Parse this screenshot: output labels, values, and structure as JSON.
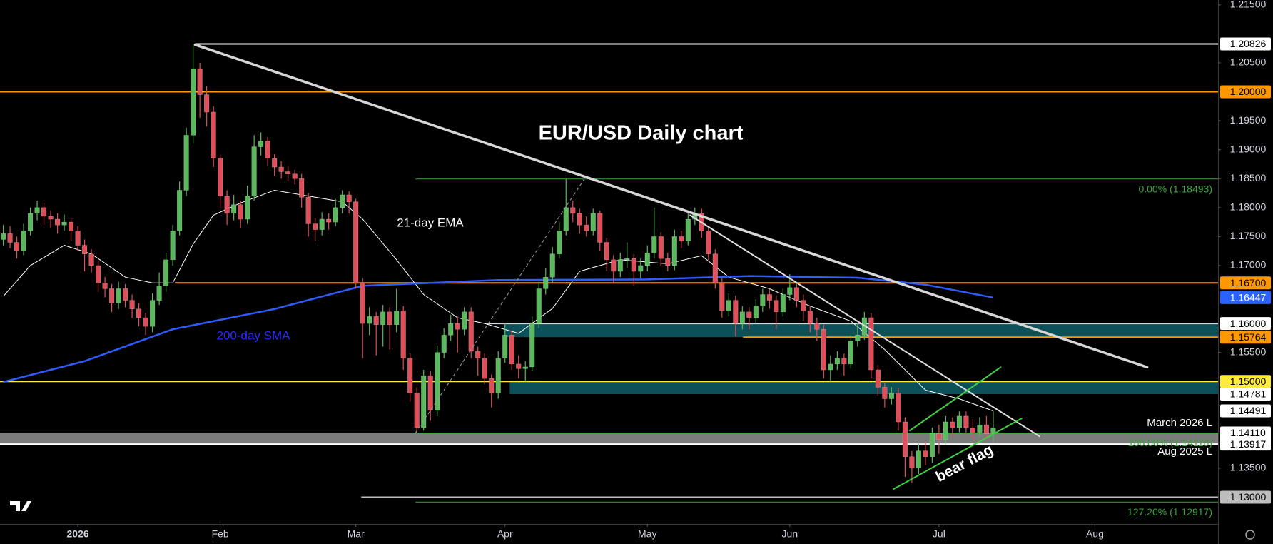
{
  "chart_data": {
    "type": "candlestick",
    "title": "EUR/USD Daily chart",
    "xlim": [
      -0.48,
      179.16
    ],
    "xticks": [
      {
        "value": 11,
        "label": "2026"
      },
      {
        "value": 32,
        "label": "Feb"
      },
      {
        "value": 52,
        "label": "Mar"
      },
      {
        "value": 74,
        "label": "Apr"
      },
      {
        "value": 95,
        "label": "May"
      },
      {
        "value": 116,
        "label": "Jun"
      },
      {
        "value": 138,
        "label": "Jul"
      },
      {
        "value": 161,
        "label": "Aug"
      }
    ],
    "ylim": [
      1.12538,
      1.21584
    ],
    "yticks": [
      {
        "value": 1.215,
        "label": "1.21500"
      },
      {
        "value": 1.205,
        "label": "1.20500"
      },
      {
        "value": 1.195,
        "label": "1.19500"
      },
      {
        "value": 1.19,
        "label": "1.19000"
      },
      {
        "value": 1.185,
        "label": "1.18500"
      },
      {
        "value": 1.18,
        "label": "1.18000"
      },
      {
        "value": 1.175,
        "label": "1.17500"
      },
      {
        "value": 1.17,
        "label": "1.17000"
      },
      {
        "value": 1.155,
        "label": "1.15500"
      },
      {
        "value": 1.135,
        "label": "1.13500"
      }
    ],
    "grid": false,
    "up_color": "#5cb85c",
    "down_color": "#e04e5a",
    "candles": [
      [
        1.1745,
        1.177,
        1.1735,
        1.1755
      ],
      [
        1.1755,
        1.1768,
        1.173,
        1.174
      ],
      [
        1.174,
        1.175,
        1.1712,
        1.1725
      ],
      [
        1.1725,
        1.1772,
        1.1718,
        1.176
      ],
      [
        1.176,
        1.18,
        1.1752,
        1.179
      ],
      [
        1.179,
        1.1812,
        1.1778,
        1.18
      ],
      [
        1.18,
        1.1808,
        1.177,
        1.1785
      ],
      [
        1.1785,
        1.1795,
        1.1765,
        1.178
      ],
      [
        1.178,
        1.179,
        1.1755,
        1.177
      ],
      [
        1.177,
        1.1788,
        1.176,
        1.1775
      ],
      [
        1.1775,
        1.1782,
        1.1742,
        1.176
      ],
      [
        1.176,
        1.1768,
        1.1725,
        1.1735
      ],
      [
        1.1735,
        1.1745,
        1.169,
        1.172
      ],
      [
        1.172,
        1.1728,
        1.1688,
        1.17
      ],
      [
        1.17,
        1.1708,
        1.1655,
        1.167
      ],
      [
        1.167,
        1.168,
        1.1645,
        1.166
      ],
      [
        1.166,
        1.1668,
        1.162,
        1.1635
      ],
      [
        1.1635,
        1.1672,
        1.1625,
        1.166
      ],
      [
        1.166,
        1.1668,
        1.1628,
        1.164
      ],
      [
        1.164,
        1.165,
        1.161,
        1.1625
      ],
      [
        1.1625,
        1.1635,
        1.1595,
        1.161
      ],
      [
        1.161,
        1.1618,
        1.158,
        1.1595
      ],
      [
        1.1595,
        1.1652,
        1.1585,
        1.164
      ],
      [
        1.164,
        1.1688,
        1.1632,
        1.1665
      ],
      [
        1.1665,
        1.1722,
        1.1655,
        1.171
      ],
      [
        1.171,
        1.177,
        1.17,
        1.176
      ],
      [
        1.176,
        1.1845,
        1.1752,
        1.183
      ],
      [
        1.183,
        1.1938,
        1.182,
        1.1925
      ],
      [
        1.1925,
        1.20826,
        1.191,
        1.204
      ],
      [
        1.204,
        1.205,
        1.1955,
        1.1995
      ],
      [
        1.1995,
        1.201,
        1.194,
        1.1965
      ],
      [
        1.1965,
        1.1975,
        1.187,
        1.1885
      ],
      [
        1.1885,
        1.1892,
        1.18,
        1.182
      ],
      [
        1.182,
        1.183,
        1.177,
        1.179
      ],
      [
        1.179,
        1.1822,
        1.1778,
        1.1805
      ],
      [
        1.1805,
        1.1812,
        1.1765,
        1.178
      ],
      [
        1.178,
        1.1838,
        1.1772,
        1.182
      ],
      [
        1.182,
        1.1925,
        1.1812,
        1.1905
      ],
      [
        1.1905,
        1.193,
        1.189,
        1.1915
      ],
      [
        1.1915,
        1.1922,
        1.1872,
        1.1885
      ],
      [
        1.1885,
        1.1892,
        1.1855,
        1.187
      ],
      [
        1.187,
        1.188,
        1.185,
        1.1862
      ],
      [
        1.1862,
        1.1872,
        1.1845,
        1.1858
      ],
      [
        1.1858,
        1.1865,
        1.184,
        1.185
      ],
      [
        1.185,
        1.1858,
        1.18,
        1.1818
      ],
      [
        1.1818,
        1.1825,
        1.175,
        1.1772
      ],
      [
        1.1772,
        1.1782,
        1.1742,
        1.1762
      ],
      [
        1.1762,
        1.1792,
        1.1752,
        1.178
      ],
      [
        1.178,
        1.179,
        1.1762,
        1.1775
      ],
      [
        1.1775,
        1.1815,
        1.1768,
        1.18
      ],
      [
        1.18,
        1.183,
        1.179,
        1.1822
      ],
      [
        1.1822,
        1.1828,
        1.179,
        1.181
      ],
      [
        1.181,
        1.1815,
        1.166,
        1.167
      ],
      [
        1.167,
        1.1678,
        1.154,
        1.16
      ],
      [
        1.16,
        1.1628,
        1.158,
        1.1612
      ],
      [
        1.1612,
        1.162,
        1.1545,
        1.1598
      ],
      [
        1.1598,
        1.1632,
        1.156,
        1.162
      ],
      [
        1.162,
        1.1628,
        1.1555,
        1.1598
      ],
      [
        1.1598,
        1.166,
        1.1585,
        1.1622
      ],
      [
        1.1622,
        1.163,
        1.152,
        1.154
      ],
      [
        1.154,
        1.1548,
        1.1465,
        1.148
      ],
      [
        1.148,
        1.149,
        1.1411,
        1.142
      ],
      [
        1.142,
        1.152,
        1.1415,
        1.151
      ],
      [
        1.151,
        1.1518,
        1.1432,
        1.145
      ],
      [
        1.145,
        1.1562,
        1.144,
        1.155
      ],
      [
        1.155,
        1.1592,
        1.154,
        1.158
      ],
      [
        1.158,
        1.1615,
        1.157,
        1.16
      ],
      [
        1.16,
        1.1612,
        1.155,
        1.159
      ],
      [
        1.159,
        1.1628,
        1.158,
        1.162
      ],
      [
        1.162,
        1.1628,
        1.154,
        1.1552
      ],
      [
        1.1552,
        1.156,
        1.151,
        1.154
      ],
      [
        1.154,
        1.1548,
        1.1495,
        1.1505
      ],
      [
        1.1505,
        1.1512,
        1.1455,
        1.148
      ],
      [
        1.148,
        1.1552,
        1.147,
        1.154
      ],
      [
        1.154,
        1.16,
        1.1532,
        1.158
      ],
      [
        1.158,
        1.1588,
        1.152,
        1.153
      ],
      [
        1.153,
        1.1545,
        1.1505,
        1.1522
      ],
      [
        1.1522,
        1.1535,
        1.15,
        1.1525
      ],
      [
        1.1525,
        1.1612,
        1.1518,
        1.16
      ],
      [
        1.16,
        1.1672,
        1.1592,
        1.166
      ],
      [
        1.166,
        1.1695,
        1.165,
        1.168
      ],
      [
        1.168,
        1.1732,
        1.167,
        1.172
      ],
      [
        1.172,
        1.1775,
        1.1712,
        1.176
      ],
      [
        1.176,
        1.1849,
        1.1752,
        1.18
      ],
      [
        1.18,
        1.1812,
        1.1775,
        1.179
      ],
      [
        1.179,
        1.1798,
        1.1755,
        1.177
      ],
      [
        1.177,
        1.1785,
        1.175,
        1.176
      ],
      [
        1.176,
        1.1798,
        1.1752,
        1.179
      ],
      [
        1.179,
        1.1795,
        1.1725,
        1.174
      ],
      [
        1.174,
        1.1748,
        1.169,
        1.171
      ],
      [
        1.171,
        1.1718,
        1.167,
        1.169
      ],
      [
        1.169,
        1.1722,
        1.168,
        1.171
      ],
      [
        1.171,
        1.174,
        1.1695,
        1.1712
      ],
      [
        1.1712,
        1.172,
        1.1665,
        1.169
      ],
      [
        1.169,
        1.1712,
        1.1678,
        1.17
      ],
      [
        1.17,
        1.1735,
        1.169,
        1.1722
      ],
      [
        1.1722,
        1.18,
        1.1712,
        1.175
      ],
      [
        1.175,
        1.1758,
        1.17,
        1.1712
      ],
      [
        1.1712,
        1.1722,
        1.169,
        1.17
      ],
      [
        1.17,
        1.1762,
        1.1692,
        1.175
      ],
      [
        1.175,
        1.176,
        1.173,
        1.1742
      ],
      [
        1.1742,
        1.1795,
        1.1735,
        1.178
      ],
      [
        1.178,
        1.18,
        1.177,
        1.179
      ],
      [
        1.179,
        1.1798,
        1.1748,
        1.176
      ],
      [
        1.176,
        1.1768,
        1.171,
        1.172
      ],
      [
        1.172,
        1.1728,
        1.166,
        1.167
      ],
      [
        1.167,
        1.1678,
        1.161,
        1.1622
      ],
      [
        1.1622,
        1.1652,
        1.1612,
        1.164
      ],
      [
        1.164,
        1.1648,
        1.1578,
        1.16
      ],
      [
        1.16,
        1.163,
        1.159,
        1.162
      ],
      [
        1.162,
        1.1628,
        1.159,
        1.161
      ],
      [
        1.161,
        1.1642,
        1.16,
        1.163
      ],
      [
        1.163,
        1.166,
        1.162,
        1.165
      ],
      [
        1.165,
        1.166,
        1.1625,
        1.164
      ],
      [
        1.164,
        1.1648,
        1.159,
        1.162
      ],
      [
        1.162,
        1.166,
        1.1612,
        1.165
      ],
      [
        1.165,
        1.1685,
        1.164,
        1.1662
      ],
      [
        1.1662,
        1.167,
        1.1628,
        1.164
      ],
      [
        1.164,
        1.165,
        1.1605,
        1.1622
      ],
      [
        1.1622,
        1.163,
        1.1585,
        1.16
      ],
      [
        1.16,
        1.161,
        1.157,
        1.159
      ],
      [
        1.159,
        1.1598,
        1.1505,
        1.152
      ],
      [
        1.152,
        1.1545,
        1.15,
        1.153
      ],
      [
        1.153,
        1.1552,
        1.152,
        1.154
      ],
      [
        1.154,
        1.1548,
        1.151,
        1.153
      ],
      [
        1.153,
        1.158,
        1.1522,
        1.157
      ],
      [
        1.157,
        1.16,
        1.156,
        1.158
      ],
      [
        1.158,
        1.162,
        1.1572,
        1.161
      ],
      [
        1.161,
        1.1618,
        1.1505,
        1.152
      ],
      [
        1.152,
        1.1528,
        1.1475,
        1.149
      ],
      [
        1.149,
        1.1498,
        1.1455,
        1.147
      ],
      [
        1.147,
        1.149,
        1.146,
        1.148
      ],
      [
        1.148,
        1.1488,
        1.1415,
        1.143
      ],
      [
        1.143,
        1.1438,
        1.1335,
        1.137
      ],
      [
        1.137,
        1.138,
        1.1325,
        1.135
      ],
      [
        1.135,
        1.1392,
        1.134,
        1.138
      ],
      [
        1.138,
        1.1395,
        1.1355,
        1.137
      ],
      [
        1.137,
        1.142,
        1.136,
        1.141
      ],
      [
        1.141,
        1.1425,
        1.1375,
        1.14
      ],
      [
        1.14,
        1.144,
        1.1392,
        1.143
      ],
      [
        1.143,
        1.1438,
        1.1405,
        1.142
      ],
      [
        1.142,
        1.1448,
        1.1412,
        1.144
      ],
      [
        1.144,
        1.1448,
        1.1408,
        1.142
      ],
      [
        1.142,
        1.1435,
        1.14,
        1.1412
      ],
      [
        1.1412,
        1.1438,
        1.1405,
        1.1425
      ],
      [
        1.1425,
        1.144,
        1.1402,
        1.141
      ],
      [
        1.141,
        1.1449,
        1.1395,
        1.142
      ]
    ],
    "series": [
      {
        "name": "21-day EMA",
        "color": "#ffffff",
        "width": 1,
        "x": [
          0,
          4,
          9,
          13,
          18,
          22,
          25,
          28,
          31,
          35,
          40,
          45,
          50,
          53,
          58,
          62,
          67,
          71,
          76,
          81,
          85,
          91,
          98,
          103,
          107,
          113,
          119,
          125,
          130,
          136,
          141,
          146
        ],
        "values": [
          1.1647,
          1.17,
          1.1735,
          1.172,
          1.168,
          1.167,
          1.167,
          1.1737,
          1.1787,
          1.1808,
          1.183,
          1.182,
          1.181,
          1.178,
          1.171,
          1.165,
          1.161,
          1.16,
          1.1583,
          1.1626,
          1.169,
          1.171,
          1.1703,
          1.1717,
          1.168,
          1.166,
          1.163,
          1.1604,
          1.1555,
          1.1485,
          1.147,
          1.1449
        ]
      },
      {
        "name": "200-day SMA",
        "color": "#2f5cff",
        "width": 2.5,
        "x": [
          0,
          12,
          25,
          40,
          53,
          73,
          95,
          110,
          126,
          136,
          146
        ],
        "values": [
          1.1499,
          1.1535,
          1.159,
          1.1625,
          1.1665,
          1.1675,
          1.1676,
          1.1682,
          1.1679,
          1.1667,
          1.16447
        ]
      }
    ],
    "levels": [
      {
        "value": 1.20826,
        "label": "1.20826",
        "from": 28.3,
        "color": "#ffffff",
        "label_bg": "#ffffff",
        "label_color": "#000000"
      },
      {
        "value": 1.2,
        "label": "1.20000",
        "from": -0.48,
        "color": "#ff9800",
        "label_bg": "#ff9800",
        "label_color": "#000000"
      },
      {
        "value": 1.167,
        "label": "1.16700",
        "from": 25.3,
        "color": "#ff9800",
        "label_bg": "#ff9800",
        "label_color": "#000000"
      },
      {
        "value": 1.16447,
        "label": "1.16447",
        "label_bg": "#2962ff",
        "label_color": "#ffffff"
      },
      {
        "value": 1.16,
        "label": "1.16000",
        "from": 71.4,
        "color": "#cfd8dc",
        "label_bg": "#ffffff",
        "label_color": "#000000"
      },
      {
        "value": 1.15764,
        "label": "1.15764",
        "from": 109.1,
        "color": "#ff9800",
        "label_bg": "#ff9800",
        "label_color": "#000000"
      },
      {
        "value": 1.15,
        "label": "1.15000",
        "from": -0.48,
        "color": "#ffeb3b",
        "label_bg": "#ffeb3b",
        "label_color": "#000000"
      },
      {
        "value": 1.14781,
        "label": "1.14781",
        "label_bg": "#ffffff",
        "label_color": "#000000"
      },
      {
        "value": 1.14491,
        "label": "1.14491",
        "label_bg": "#ffffff",
        "label_color": "#000000"
      },
      {
        "value": 1.1411,
        "label": "1.14110",
        "label_bg": "#ffffff",
        "label_color": "#000000"
      },
      {
        "value": 1.13917,
        "label": "1.13917",
        "from": -0.48,
        "color": "#ffffff",
        "label_bg": "#ffffff",
        "label_color": "#000000"
      },
      {
        "value": 1.13,
        "label": "1.13000",
        "from": 52.8,
        "color": "#bdbdbd",
        "label_bg": "#bdbdbd",
        "label_color": "#000000"
      }
    ],
    "zones": [
      {
        "from": 73.8,
        "low": 1.15764,
        "high": 1.16,
        "color": "#0d5a63"
      },
      {
        "from": 74.7,
        "low": 1.14781,
        "high": 1.15,
        "color": "#0d5a63"
      },
      {
        "from": -0.48,
        "low": 1.13917,
        "high": 1.1411,
        "color": "#8a8a8a"
      }
    ],
    "fib": [
      {
        "value": 1.18493,
        "label": "0.00% (1.18493)",
        "from": 60.8
      },
      {
        "value": 1.1411,
        "label": "100.00% (1.14110)",
        "from": 60.8
      },
      {
        "value": 1.12917,
        "label": "127.20% (1.12917)",
        "from": 60.8
      }
    ],
    "fib_color": "#3aa33a",
    "trendlines": [
      {
        "points": [
          [
            28.3,
            1.20813
          ],
          [
            168.7,
            1.15245
          ]
        ],
        "color": "#d6d6d6",
        "width": 3.5
      },
      {
        "points": [
          [
            101.3,
            1.17868
          ],
          [
            152.8,
            1.14053
          ]
        ],
        "color": "#e0e0e0",
        "width": 2
      },
      {
        "points": [
          [
            133.7,
            1.14151
          ],
          [
            147.1,
            1.15245
          ]
        ],
        "color": "#3fcf3f",
        "width": 2
      },
      {
        "points": [
          [
            131.3,
            1.13141
          ],
          [
            150.2,
            1.14361
          ]
        ],
        "color": "#3fcf3f",
        "width": 2
      },
      {
        "points": [
          [
            60.8,
            1.1411
          ],
          [
            85.7,
            1.18493
          ]
        ],
        "color": "#9e9e9e",
        "width": 1,
        "dash": true
      }
    ],
    "annotations": [
      "March 2026 L",
      "Aug 2025 L",
      "bear flag"
    ]
  }
}
